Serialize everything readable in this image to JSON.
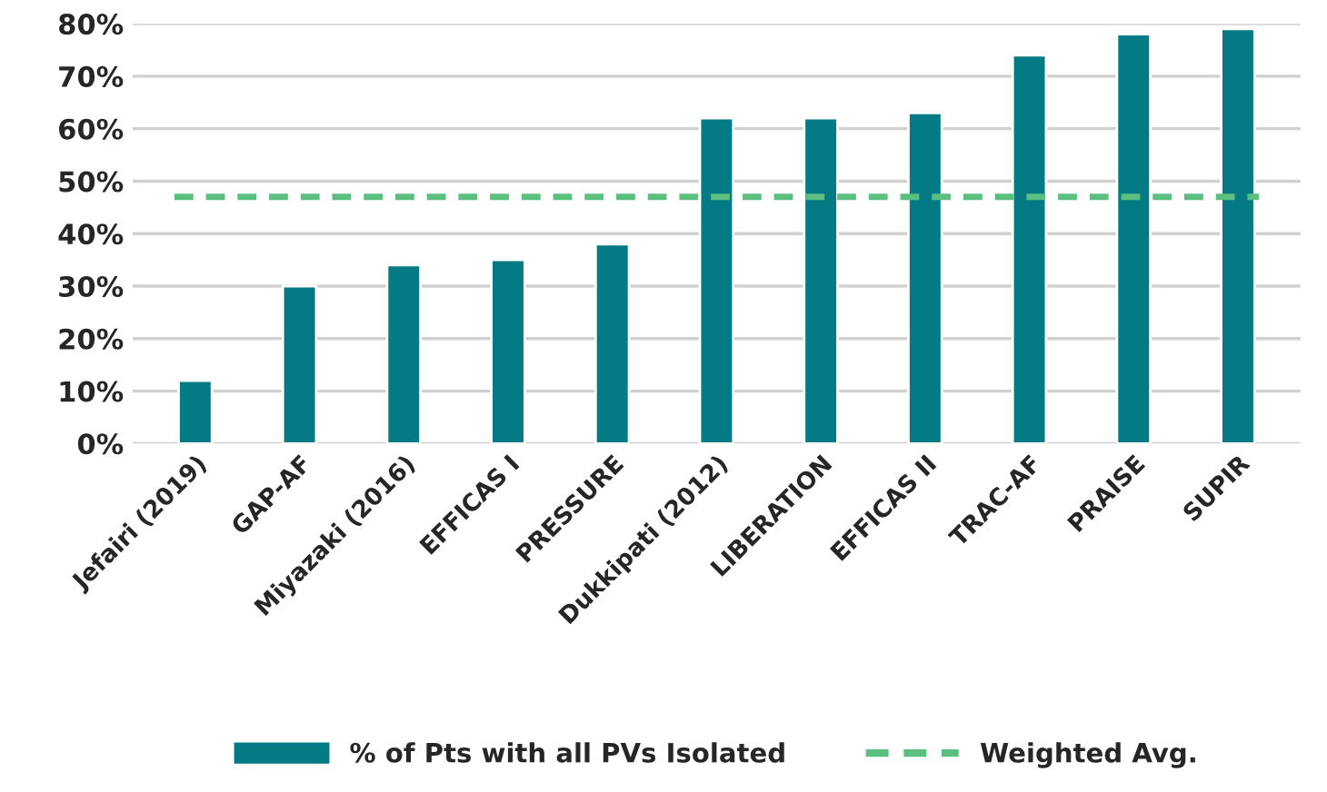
{
  "chart_data": {
    "type": "bar",
    "categories": [
      "Jefairi (2019)",
      "GAP-AF",
      "Miyazaki (2016)",
      "EFFICAS I",
      "PRESSURE",
      "Dukkipati (2012)",
      "LIBERATION",
      "EFFICAS II",
      "TRAC-AF",
      "PRAISE",
      "SUPIR"
    ],
    "series": [
      {
        "name": "% of Pts with all PVs Isolated",
        "color": "#037a84",
        "values": [
          12,
          30,
          34,
          35,
          38,
          62,
          62,
          63,
          74,
          78,
          79
        ]
      }
    ],
    "ref_lines": [
      {
        "axis": "y",
        "value": 47,
        "label": "Weighted Avg.",
        "color": "#5bbf80",
        "line_style": "dashed"
      }
    ],
    "ylim": [
      0,
      80
    ],
    "yticks": [
      {
        "value": 0,
        "label": "0%"
      },
      {
        "value": 10,
        "label": "10%"
      },
      {
        "value": 20,
        "label": "20%"
      },
      {
        "value": 30,
        "label": "30%"
      },
      {
        "value": 40,
        "label": "40%"
      },
      {
        "value": 50,
        "label": "50%"
      },
      {
        "value": 60,
        "label": "60%"
      },
      {
        "value": 70,
        "label": "70%"
      },
      {
        "value": 80,
        "label": "80%"
      }
    ],
    "grid": "y",
    "legend": "bottom"
  }
}
